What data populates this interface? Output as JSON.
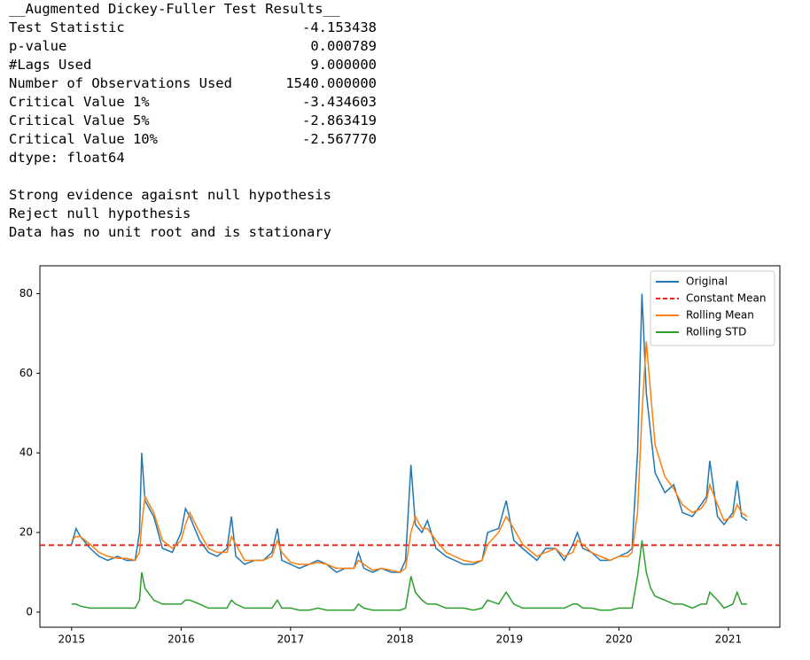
{
  "adf": {
    "title": "__Augmented Dickey-Fuller Test Results__",
    "rows": [
      [
        "Test Statistic",
        "-4.153438"
      ],
      [
        "p-value",
        "0.000789"
      ],
      [
        "#Lags Used",
        "9.000000"
      ],
      [
        "Number of Observations Used",
        "1540.000000"
      ],
      [
        "Critical Value 1%",
        "-3.434603"
      ],
      [
        "Critical Value 5%",
        "-2.863419"
      ],
      [
        "Critical Value 10%",
        "-2.567770"
      ]
    ],
    "dtype": "dtype: float64",
    "conclusions": [
      "Strong evidence agaisnt null hypothesis",
      "Reject null hypothesis",
      "Data has no unit root and is stationary"
    ]
  },
  "chart_data": {
    "type": "line",
    "x": [
      2015.0,
      2015.04,
      2015.08,
      2015.17,
      2015.25,
      2015.33,
      2015.42,
      2015.5,
      2015.58,
      2015.62,
      2015.64,
      2015.67,
      2015.75,
      2015.83,
      2015.92,
      2016.0,
      2016.04,
      2016.08,
      2016.17,
      2016.25,
      2016.33,
      2016.42,
      2016.46,
      2016.5,
      2016.58,
      2016.67,
      2016.75,
      2016.83,
      2016.88,
      2016.92,
      2017.0,
      2017.08,
      2017.17,
      2017.25,
      2017.33,
      2017.42,
      2017.5,
      2017.58,
      2017.62,
      2017.67,
      2017.75,
      2017.83,
      2017.92,
      2018.0,
      2018.05,
      2018.1,
      2018.14,
      2018.2,
      2018.25,
      2018.33,
      2018.42,
      2018.5,
      2018.58,
      2018.67,
      2018.75,
      2018.8,
      2018.9,
      2018.97,
      2019.04,
      2019.12,
      2019.25,
      2019.33,
      2019.42,
      2019.5,
      2019.58,
      2019.62,
      2019.67,
      2019.75,
      2019.83,
      2019.92,
      2020.0,
      2020.08,
      2020.12,
      2020.17,
      2020.21,
      2020.25,
      2020.29,
      2020.33,
      2020.42,
      2020.5,
      2020.58,
      2020.67,
      2020.75,
      2020.8,
      2020.83,
      2020.9,
      2020.96,
      2021.04,
      2021.08,
      2021.12,
      2021.17
    ],
    "series": [
      {
        "name": "Original",
        "color": "#1f77b4",
        "values": [
          17,
          21,
          19,
          16,
          14,
          13,
          14,
          13,
          13,
          20,
          40,
          28,
          24,
          16,
          15,
          20,
          26,
          24,
          18,
          15,
          14,
          16,
          24,
          14,
          12,
          13,
          13,
          15,
          21,
          13,
          12,
          11,
          12,
          13,
          12,
          10,
          11,
          11,
          15,
          11,
          10,
          11,
          10,
          10,
          13,
          37,
          22,
          20,
          23,
          16,
          14,
          13,
          12,
          12,
          13,
          20,
          21,
          28,
          18,
          16,
          13,
          16,
          16,
          13,
          17,
          20,
          16,
          15,
          13,
          13,
          14,
          15,
          16,
          40,
          80,
          55,
          45,
          35,
          30,
          32,
          25,
          24,
          27,
          29,
          38,
          24,
          22,
          25,
          33,
          24,
          23
        ]
      },
      {
        "name": "Constant Mean",
        "color": "#e8281e",
        "dashed": true,
        "value": 16.8
      },
      {
        "name": "Rolling Mean",
        "color": "#ff7f0e",
        "values": [
          18,
          19,
          19,
          17,
          15,
          14,
          13.5,
          13.5,
          13,
          15,
          22,
          29,
          25,
          18,
          16,
          18,
          22,
          25,
          20,
          16,
          15,
          15,
          19,
          17,
          13,
          13,
          13,
          14,
          18,
          15,
          12.5,
          12,
          12,
          12.5,
          12,
          11,
          11,
          11,
          13,
          12,
          10.5,
          11,
          10.5,
          10,
          11,
          20,
          24,
          21,
          21,
          18,
          15,
          14,
          13,
          12.5,
          13,
          17,
          20,
          24,
          21,
          17,
          14,
          15,
          16,
          14,
          15,
          18,
          17,
          15,
          14,
          13,
          14,
          14,
          15,
          25,
          50,
          68,
          55,
          42,
          34,
          31,
          27,
          25,
          26,
          28,
          32,
          27,
          23,
          24,
          27,
          25,
          24
        ]
      },
      {
        "name": "Rolling STD",
        "color": "#2ca02c",
        "values": [
          2,
          2,
          1.5,
          1,
          1,
          1,
          1,
          1,
          1,
          3,
          10,
          6,
          3,
          2,
          2,
          2,
          3,
          3,
          2,
          1,
          1,
          1,
          3,
          2,
          1,
          1,
          1,
          1,
          3,
          1,
          1,
          0.5,
          0.5,
          1,
          0.5,
          0.5,
          0.5,
          0.5,
          2,
          1,
          0.5,
          0.5,
          0.5,
          0.5,
          1,
          9,
          5,
          3,
          2,
          2,
          1,
          1,
          1,
          0.5,
          1,
          3,
          2,
          5,
          2,
          1,
          1,
          1,
          1,
          1,
          2,
          2,
          1,
          1,
          0.5,
          0.5,
          1,
          1,
          1,
          9,
          18,
          10,
          6,
          4,
          3,
          2,
          2,
          1,
          2,
          2,
          5,
          3,
          1,
          2,
          5,
          2,
          2
        ]
      }
    ],
    "xlim": [
      2014.71,
      2021.47
    ],
    "xticks": [
      2015,
      2016,
      2017,
      2018,
      2019,
      2020,
      2021
    ],
    "ylim": [
      -3.8,
      87
    ],
    "yticks": [
      0,
      20,
      40,
      60,
      80
    ],
    "legend": "upper right"
  }
}
